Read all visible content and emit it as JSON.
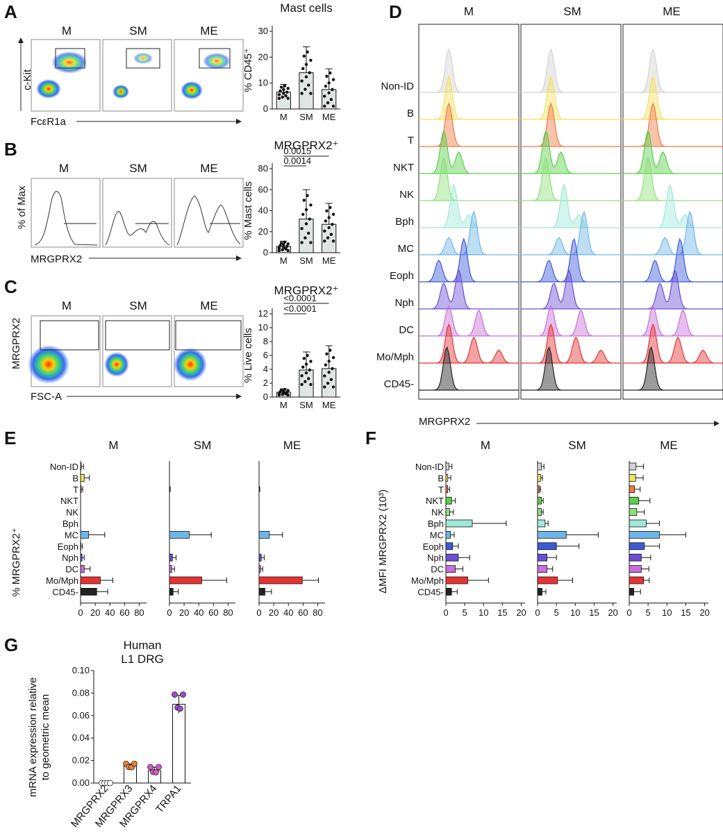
{
  "panel_letters": [
    "A",
    "B",
    "C",
    "D",
    "E",
    "F",
    "G"
  ],
  "axes": {
    "ckit": "c-Kit",
    "fcer1a": "FcεR1a",
    "pct_of_max": "% of Max",
    "mrgprx2": "MRGPRX2",
    "fsc": "FSC-A",
    "pct_mrgprx2": "%  MRGPRX2⁺",
    "dmfi": "ΔMFI  MRGPRX2 (10³)",
    "g_ylabel_1": "mRNA expression relative",
    "g_ylabel_2": "to geometric mean"
  },
  "conditions": [
    "M",
    "SM",
    "ME"
  ],
  "cell_types": [
    "Non-ID",
    "B",
    "T",
    "NKT",
    "NK",
    "Bph",
    "MC",
    "Eoph",
    "Nph",
    "DC",
    "Mo/Mph",
    "CD45-"
  ],
  "cell_colors": [
    "#d3d3d3",
    "#f5e25c",
    "#f07a45",
    "#5ccf4c",
    "#8fe07a",
    "#9ee8d8",
    "#6fb6e8",
    "#3d5ad6",
    "#6a4fd6",
    "#c86fd8",
    "#e53333",
    "#222222"
  ],
  "chart_data": [
    {
      "id": "A",
      "type": "bar",
      "title": "Mast cells",
      "ylabel": "% CD45⁺",
      "categories": [
        "M",
        "SM",
        "ME"
      ],
      "values": [
        6.5,
        14,
        7.5
      ],
      "errors": [
        3,
        10,
        8
      ],
      "ylim": [
        0,
        30
      ],
      "yticks": [
        0,
        10,
        20,
        30
      ]
    },
    {
      "id": "B",
      "type": "bar",
      "title": "MRGPRX2⁺",
      "ylabel": "% Mast cells",
      "categories": [
        "M",
        "SM",
        "ME"
      ],
      "values": [
        6,
        32,
        27
      ],
      "errors": [
        5,
        28,
        20
      ],
      "ylim": [
        0,
        80
      ],
      "yticks": [
        0,
        20,
        40,
        60,
        80
      ],
      "significance": [
        "0.0014",
        "0.0015"
      ]
    },
    {
      "id": "C",
      "type": "bar",
      "title": "MRGPRX2⁺",
      "ylabel": "% Live cells",
      "categories": [
        "M",
        "SM",
        "ME"
      ],
      "values": [
        0.7,
        3.9,
        4.1
      ],
      "errors": [
        0.5,
        2.6,
        3.3
      ],
      "ylim": [
        0,
        12
      ],
      "yticks": [
        0,
        2,
        4,
        6,
        8,
        10,
        12
      ],
      "significance": [
        "<0.0001",
        "<0.0001"
      ]
    },
    {
      "id": "E",
      "type": "bar",
      "orientation": "horizontal",
      "xlabel": "%  MRGPRX2⁺",
      "xticks": [
        0,
        20,
        40,
        60,
        80
      ],
      "xlim": [
        0,
        90
      ],
      "series": [
        {
          "name": "M",
          "values": [
            1,
            5,
            1,
            0,
            0,
            0,
            11,
            0.5,
            2,
            5,
            27,
            22
          ],
          "errors": [
            3,
            7,
            2,
            0,
            0,
            0,
            22,
            2,
            3,
            8,
            17,
            15
          ]
        },
        {
          "name": "SM",
          "values": [
            0,
            0,
            0,
            0,
            0,
            0,
            27,
            0,
            4,
            3,
            44,
            5
          ],
          "errors": [
            0,
            0,
            1,
            0,
            0,
            0,
            30,
            0,
            5,
            4,
            34,
            7
          ]
        },
        {
          "name": "ME",
          "values": [
            0,
            0,
            0,
            0,
            0,
            0,
            14,
            0,
            3,
            2,
            59,
            8
          ],
          "errors": [
            0,
            0,
            1,
            0,
            0,
            0,
            18,
            0,
            4,
            3,
            22,
            9
          ]
        }
      ]
    },
    {
      "id": "F",
      "type": "bar",
      "orientation": "horizontal",
      "xlabel": "ΔMFI  MRGPRX2 (10³)",
      "xticks": [
        0,
        5,
        10,
        15,
        20
      ],
      "xlim": [
        0,
        21
      ],
      "series": [
        {
          "name": "M",
          "values": [
            0.8,
            0.5,
            0.5,
            1.5,
            1,
            7,
            1.2,
            1.8,
            3.3,
            2.5,
            5.8,
            1.5
          ],
          "errors": [
            0.8,
            0.8,
            0.5,
            1,
            1,
            9,
            1,
            1.5,
            3,
            2,
            5.5,
            1.5
          ]
        },
        {
          "name": "SM",
          "values": [
            1,
            0.8,
            0.5,
            1,
            1,
            2,
            7.6,
            5,
            2.5,
            2.5,
            5.3,
            1.2
          ],
          "errors": [
            0.7,
            0.5,
            0.3,
            0.5,
            0.5,
            0.8,
            8.5,
            6,
            2.5,
            1.5,
            4,
            1
          ]
        },
        {
          "name": "ME",
          "values": [
            1.8,
            1.7,
            1.4,
            2.5,
            2,
            4.5,
            8,
            4,
            3.2,
            3.2,
            3.8,
            1.2
          ],
          "errors": [
            2,
            2,
            1.5,
            3,
            2,
            3.5,
            7,
            4,
            2.5,
            2,
            1.5,
            1.8
          ]
        }
      ]
    },
    {
      "id": "G",
      "type": "bar",
      "title": "Human",
      "subtitle": "L1 DRG",
      "ylabel": "mRNA expression relative to geometric mean",
      "categories": [
        "MRGPRX2",
        "MRGPRX3",
        "MRGPRX4",
        "TRPA1"
      ],
      "values": [
        0,
        0.015,
        0.011,
        0.07
      ],
      "errors": [
        0,
        0.002,
        0.003,
        0.008
      ],
      "ylim": [
        0,
        0.1
      ],
      "yticks": [
        "0.00",
        "0.02",
        "0.04",
        "0.06",
        "0.08",
        "0.10"
      ],
      "dot_colors": [
        "#ffffff",
        "#e8823a",
        "#d65ac8",
        "#9b4fc9"
      ]
    }
  ]
}
